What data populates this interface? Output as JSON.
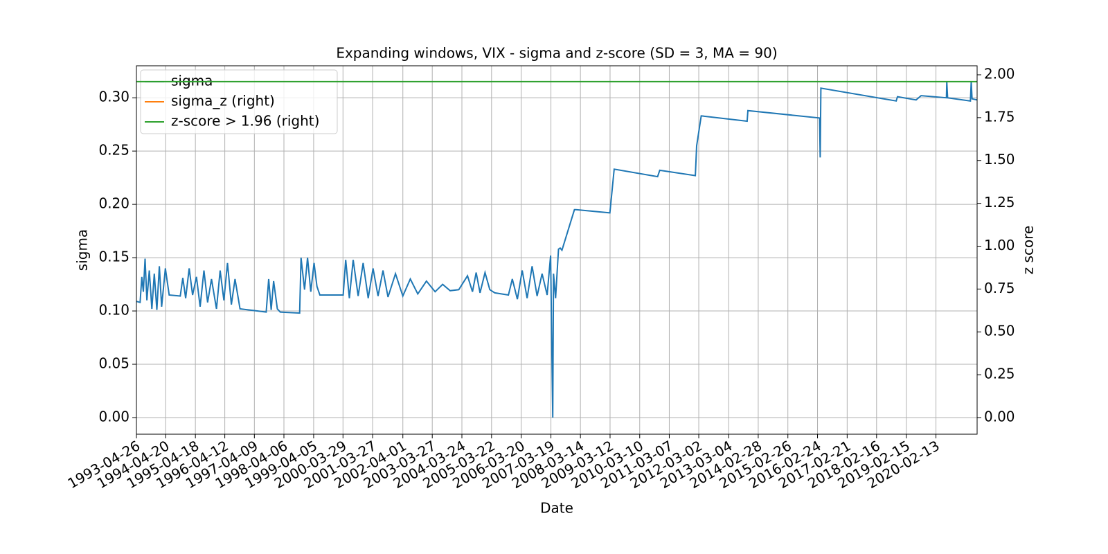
{
  "chart_data": {
    "type": "line",
    "title": "Expanding windows, VIX - sigma and z-score (SD = 3, MA = 90)",
    "x_label": "Date",
    "y_label": "sigma",
    "y2_label": "z score",
    "grid": true,
    "legend": "upper left",
    "xlim": [
      "1993-04-26",
      "2021-07-01"
    ],
    "xticks": [
      "1993-04-26",
      "1994-04-20",
      "1995-04-18",
      "1996-04-12",
      "1997-04-09",
      "1998-04-06",
      "1999-04-05",
      "2000-03-29",
      "2001-03-27",
      "2002-04-01",
      "2003-03-27",
      "2004-03-24",
      "2005-03-22",
      "2006-03-20",
      "2007-03-19",
      "2008-03-14",
      "2009-03-12",
      "2010-03-10",
      "2011-03-07",
      "2012-03-02",
      "2013-03-04",
      "2014-02-28",
      "2015-02-26",
      "2016-02-24",
      "2017-02-21",
      "2018-02-16",
      "2019-02-15",
      "2020-02-13"
    ],
    "ylim": [
      -0.0156,
      0.33
    ],
    "yticks": [
      {
        "value": 0,
        "label": "0.00"
      },
      0.05,
      {
        "value": 0.1,
        "label": "0.10"
      },
      0.15,
      {
        "value": 0.2,
        "label": "0.20"
      },
      0.25,
      {
        "value": 0.3,
        "label": "0.30"
      }
    ],
    "y2lim": [
      -0.097,
      2.0525
    ],
    "y2ticks": [
      {
        "value": 0,
        "label": "0.00"
      },
      0.25,
      {
        "value": 0.5,
        "label": "0.50"
      },
      0.75,
      {
        "value": 1,
        "label": "1.00"
      },
      1.25,
      {
        "value": 1.5,
        "label": "1.50"
      },
      1.75,
      {
        "value": 2,
        "label": "2.00"
      }
    ],
    "series": [
      {
        "name": "sigma",
        "color": "#1f77b4",
        "x": [
          "1993-04-26",
          "1993-06-10",
          "1993-07-01",
          "1993-07-20",
          "1993-08-10",
          "1993-09-01",
          "1993-10-01",
          "1993-11-01",
          "1993-12-01",
          "1994-01-01",
          "1994-02-01",
          "1994-03-01",
          "1994-04-15",
          "1994-06-01",
          "1994-10-15",
          "1994-11-15",
          "1994-12-20",
          "1995-02-01",
          "1995-03-15",
          "1995-05-01",
          "1995-06-15",
          "1995-08-01",
          "1995-09-15",
          "1995-11-01",
          "1996-01-01",
          "1996-02-15",
          "1996-04-01",
          "1996-05-15",
          "1996-07-01",
          "1996-08-15",
          "1996-10-15",
          "1997-09-01",
          "1997-10-01",
          "1997-11-01",
          "1997-12-01",
          "1998-01-15",
          "1998-02-20",
          "1998-10-15",
          "1998-11-01",
          "1998-12-15",
          "1999-01-20",
          "1999-03-01",
          "1999-04-10",
          "1999-05-15",
          "1999-06-20",
          "2000-04-01",
          "2000-05-01",
          "2000-06-15",
          "2000-08-01",
          "2000-10-01",
          "2000-12-01",
          "2001-02-01",
          "2001-04-01",
          "2001-06-01",
          "2001-08-01",
          "2001-10-01",
          "2002-01-01",
          "2002-04-01",
          "2002-07-01",
          "2002-10-01",
          "2003-01-15",
          "2003-05-01",
          "2003-08-01",
          "2003-11-01",
          "2004-02-15",
          "2004-06-01",
          "2004-08-01",
          "2004-09-15",
          "2004-11-01",
          "2005-01-01",
          "2005-03-01",
          "2005-05-01",
          "2005-10-15",
          "2005-12-01",
          "2006-02-01",
          "2006-04-01",
          "2006-06-01",
          "2006-08-01",
          "2006-10-01",
          "2006-12-01",
          "2007-02-01",
          "2007-03-15",
          "2007-04-10",
          "2007-04-20",
          "2007-05-15",
          "2007-06-20",
          "2007-07-10",
          "2007-08-01",
          "2008-01-01",
          "2008-01-20",
          "2009-03-10",
          "2009-05-01",
          "2010-10-15",
          "2010-11-10",
          "2012-01-20",
          "2012-02-05",
          "2012-04-01",
          "2013-10-15",
          "2013-10-25",
          "2016-03-20",
          "2016-03-28",
          "2016-04-05",
          "2018-10-15",
          "2018-10-30",
          "2019-06-15",
          "2019-08-15",
          "2020-06-20",
          "2020-06-25",
          "2020-07-05",
          "2021-04-10",
          "2021-04-20",
          "2021-04-30",
          "2021-07-01"
        ],
        "values": [
          0.109,
          0.108,
          0.132,
          0.118,
          0.149,
          0.11,
          0.138,
          0.102,
          0.135,
          0.101,
          0.142,
          0.104,
          0.14,
          0.115,
          0.114,
          0.131,
          0.112,
          0.14,
          0.115,
          0.132,
          0.104,
          0.138,
          0.108,
          0.13,
          0.102,
          0.138,
          0.11,
          0.145,
          0.106,
          0.13,
          0.102,
          0.099,
          0.13,
          0.101,
          0.128,
          0.102,
          0.099,
          0.098,
          0.15,
          0.12,
          0.15,
          0.118,
          0.145,
          0.123,
          0.115,
          0.115,
          0.148,
          0.112,
          0.148,
          0.114,
          0.145,
          0.112,
          0.14,
          0.114,
          0.138,
          0.113,
          0.135,
          0.114,
          0.13,
          0.116,
          0.128,
          0.118,
          0.125,
          0.119,
          0.12,
          0.133,
          0.118,
          0.136,
          0.117,
          0.136,
          0.12,
          0.117,
          0.115,
          0.13,
          0.111,
          0.138,
          0.112,
          0.142,
          0.114,
          0.135,
          0.115,
          0.152,
          0,
          0.135,
          0.112,
          0.158,
          0.159,
          0.157,
          0.195,
          0.195,
          0.192,
          0.233,
          0.226,
          0.232,
          0.227,
          0.255,
          0.283,
          0.278,
          0.288,
          0.281,
          0.244,
          0.309,
          0.297,
          0.301,
          0.298,
          0.302,
          0.3,
          0.315,
          0.3,
          0.297,
          0.315,
          0.299,
          0.298
        ]
      },
      {
        "name": "sigma_z (right)",
        "color": "#ff7f0e",
        "axis": "y2",
        "x": [
          "1993-04-26",
          "2021-07-01"
        ],
        "values": [
          null,
          null
        ]
      },
      {
        "name": "z-score > 1.96 (right)",
        "color": "#2ca02c",
        "axis": "y2",
        "x": [
          "1993-04-26",
          "2021-07-01"
        ],
        "values": [
          1.96,
          1.96
        ]
      }
    ]
  }
}
